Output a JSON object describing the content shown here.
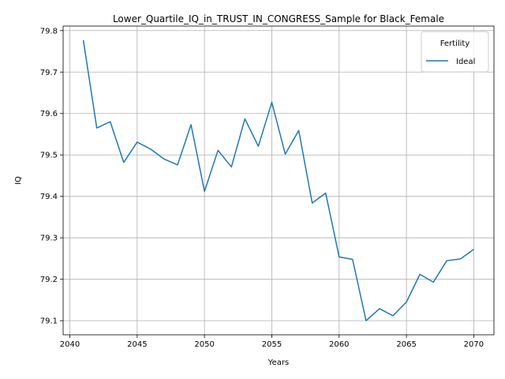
{
  "chart_data": {
    "type": "line",
    "title": "Lower_Quartile_IQ_in_TRUST_IN_CONGRESS_Sample for Black_Female",
    "xlabel": "Years",
    "ylabel": "IQ",
    "xlim": [
      2039.5,
      2071.5
    ],
    "ylim": [
      79.066,
      79.811
    ],
    "xticks": [
      2040,
      2045,
      2050,
      2055,
      2060,
      2065,
      2070
    ],
    "yticks": [
      79.1,
      79.2,
      79.3,
      79.4,
      79.5,
      79.6,
      79.7,
      79.8
    ],
    "grid": true,
    "legend": {
      "title": "Fertility",
      "placement": "top-right"
    },
    "series": [
      {
        "name": "Ideal",
        "color": "#1f77b4",
        "x": [
          2041,
          2042,
          2043,
          2044,
          2045,
          2046,
          2047,
          2048,
          2049,
          2050,
          2051,
          2052,
          2053,
          2054,
          2055,
          2056,
          2057,
          2058,
          2059,
          2060,
          2061,
          2062,
          2063,
          2064,
          2065,
          2066,
          2067,
          2068,
          2069,
          2070
        ],
        "values": [
          79.777,
          79.565,
          79.58,
          79.482,
          79.531,
          79.514,
          79.49,
          79.476,
          79.573,
          79.412,
          79.511,
          79.471,
          79.587,
          79.521,
          79.627,
          79.502,
          79.559,
          79.384,
          79.408,
          79.254,
          79.248,
          79.1,
          79.129,
          79.112,
          79.145,
          79.212,
          79.193,
          79.245,
          79.249,
          79.272
        ]
      }
    ]
  }
}
